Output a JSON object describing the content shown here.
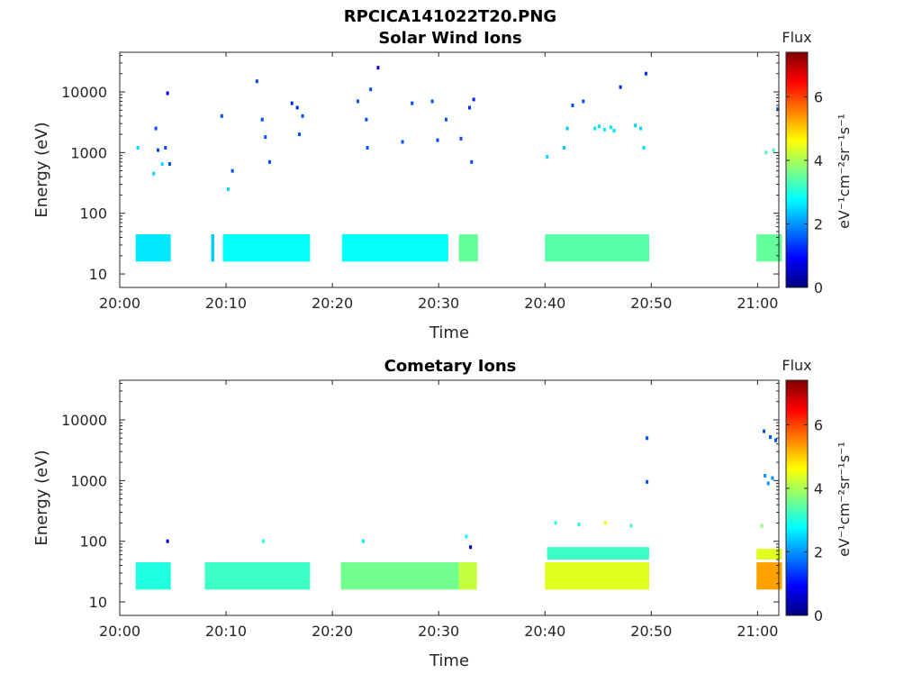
{
  "figure_title": "RPCICA141022T20.PNG",
  "colorbar": {
    "title": "Flux",
    "unit_label": "eV⁻¹cm⁻²sr⁻¹s⁻¹",
    "ticks": [
      "0",
      "2",
      "4",
      "6"
    ],
    "range": [
      0,
      7.4
    ],
    "colormap": "jet"
  },
  "chart_data": [
    {
      "type": "heatmap",
      "title": "Solar Wind Ions",
      "xlabel": "Time",
      "ylabel": "Energy (eV)",
      "x_ticks": [
        "20:00",
        "20:10",
        "20:20",
        "20:30",
        "20:40",
        "20:50",
        "21:00"
      ],
      "y_ticks": [
        "10",
        "100",
        "1000",
        "10000"
      ],
      "y_scale": "log",
      "xlim": [
        "20:00",
        "21:02"
      ],
      "ylim": [
        6,
        45000
      ],
      "cells": [
        {
          "t": 1.7,
          "e": 1200,
          "v": 2.5
        },
        {
          "t": 3.2,
          "e": 450,
          "v": 2.5
        },
        {
          "t": 3.4,
          "e": 2500,
          "v": 1.5
        },
        {
          "t": 3.6,
          "e": 1100,
          "v": 1.5
        },
        {
          "t": 4.3,
          "e": 1200,
          "v": 1.5
        },
        {
          "t": 4.5,
          "e": 9500,
          "v": 0.8
        },
        {
          "t": 4.7,
          "e": 650,
          "v": 1.5
        },
        {
          "t": 4.0,
          "e": 650,
          "v": 2.5
        },
        {
          "t": 9.6,
          "e": 4000,
          "v": 1.5
        },
        {
          "t": 10.6,
          "e": 500,
          "v": 1.5
        },
        {
          "t": 10.2,
          "e": 250,
          "v": 2.5
        },
        {
          "t": 12.9,
          "e": 15000,
          "v": 1.5
        },
        {
          "t": 13.4,
          "e": 3500,
          "v": 1.5
        },
        {
          "t": 13.7,
          "e": 1800,
          "v": 1.5
        },
        {
          "t": 14.1,
          "e": 700,
          "v": 1.5
        },
        {
          "t": 16.2,
          "e": 6500,
          "v": 1.2
        },
        {
          "t": 16.7,
          "e": 5500,
          "v": 1.2
        },
        {
          "t": 17.2,
          "e": 4000,
          "v": 1.5
        },
        {
          "t": 16.9,
          "e": 2000,
          "v": 1.5
        },
        {
          "t": 22.4,
          "e": 7000,
          "v": 1.5
        },
        {
          "t": 23.2,
          "e": 3500,
          "v": 1.5
        },
        {
          "t": 24.3,
          "e": 25000,
          "v": 0.6
        },
        {
          "t": 23.6,
          "e": 11000,
          "v": 1.5
        },
        {
          "t": 23.3,
          "e": 1200,
          "v": 1.5
        },
        {
          "t": 26.6,
          "e": 1500,
          "v": 1.5
        },
        {
          "t": 27.5,
          "e": 6500,
          "v": 1.5
        },
        {
          "t": 29.4,
          "e": 7000,
          "v": 1.5
        },
        {
          "t": 29.9,
          "e": 1600,
          "v": 1.5
        },
        {
          "t": 30.7,
          "e": 3500,
          "v": 1.5
        },
        {
          "t": 32.1,
          "e": 1700,
          "v": 1.5
        },
        {
          "t": 32.9,
          "e": 5500,
          "v": 1.2
        },
        {
          "t": 33.3,
          "e": 7500,
          "v": 1.2
        },
        {
          "t": 33.1,
          "e": 700,
          "v": 1.5
        },
        {
          "t": 40.2,
          "e": 850,
          "v": 2.5
        },
        {
          "t": 42.6,
          "e": 6000,
          "v": 1.5
        },
        {
          "t": 43.6,
          "e": 7000,
          "v": 1.5
        },
        {
          "t": 44.7,
          "e": 2500,
          "v": 2.6
        },
        {
          "t": 45.1,
          "e": 2700,
          "v": 2.6
        },
        {
          "t": 45.6,
          "e": 2400,
          "v": 2.6
        },
        {
          "t": 46.2,
          "e": 2600,
          "v": 2.6
        },
        {
          "t": 46.5,
          "e": 2300,
          "v": 2.6
        },
        {
          "t": 47.1,
          "e": 12000,
          "v": 1.2
        },
        {
          "t": 49.5,
          "e": 20000,
          "v": 1.2
        },
        {
          "t": 42.1,
          "e": 2500,
          "v": 2.4
        },
        {
          "t": 41.8,
          "e": 1200,
          "v": 2.4
        },
        {
          "t": 48.5,
          "e": 2800,
          "v": 2.5
        },
        {
          "t": 49.0,
          "e": 2500,
          "v": 2.5
        },
        {
          "t": 49.3,
          "e": 1200,
          "v": 2.5
        },
        {
          "t": 60.8,
          "e": 1000,
          "v": 3.3
        },
        {
          "t": 61.5,
          "e": 1100,
          "v": 3.3
        },
        {
          "t": 61.9,
          "e": 5200,
          "v": 1.5
        }
      ],
      "bands": [
        {
          "t0": 1.5,
          "t1": 4.8,
          "e0": 16,
          "e1": 45,
          "v": 2.6
        },
        {
          "t0": 8.6,
          "t1": 8.9,
          "e0": 16,
          "e1": 45,
          "v": 2.4
        },
        {
          "t0": 9.7,
          "t1": 17.9,
          "e0": 16,
          "e1": 45,
          "v": 2.8
        },
        {
          "t0": 20.9,
          "t1": 30.9,
          "e0": 16,
          "e1": 45,
          "v": 2.8
        },
        {
          "t0": 31.9,
          "t1": 33.7,
          "e0": 16,
          "e1": 45,
          "v": 3.5
        },
        {
          "t0": 40.0,
          "t1": 49.8,
          "e0": 16,
          "e1": 45,
          "v": 3.4
        },
        {
          "t0": 59.9,
          "t1": 62.3,
          "e0": 16,
          "e1": 45,
          "v": 3.5
        }
      ]
    },
    {
      "type": "heatmap",
      "title": "Cometary Ions",
      "xlabel": "Time",
      "ylabel": "Energy (eV)",
      "x_ticks": [
        "20:00",
        "20:10",
        "20:20",
        "20:30",
        "20:40",
        "20:50",
        "21:00"
      ],
      "y_ticks": [
        "10",
        "100",
        "1000",
        "10000"
      ],
      "y_scale": "log",
      "xlim": [
        "20:00",
        "21:02"
      ],
      "ylim": [
        6,
        45000
      ],
      "cells": [
        {
          "t": 4.5,
          "e": 100,
          "v": 0.6
        },
        {
          "t": 13.5,
          "e": 100,
          "v": 3.0
        },
        {
          "t": 22.9,
          "e": 100,
          "v": 2.6
        },
        {
          "t": 49.6,
          "e": 5000,
          "v": 1.5
        },
        {
          "t": 49.6,
          "e": 950,
          "v": 1.5
        },
        {
          "t": 60.6,
          "e": 6500,
          "v": 1.5
        },
        {
          "t": 61.2,
          "e": 5200,
          "v": 1.5
        },
        {
          "t": 61.7,
          "e": 4600,
          "v": 1.5
        },
        {
          "t": 60.7,
          "e": 1200,
          "v": 2.0
        },
        {
          "t": 61.0,
          "e": 900,
          "v": 2.0
        },
        {
          "t": 61.4,
          "e": 1100,
          "v": 2.0
        },
        {
          "t": 33.0,
          "e": 80,
          "v": 0.6
        },
        {
          "t": 32.6,
          "e": 120,
          "v": 2.8
        },
        {
          "t": 41.0,
          "e": 200,
          "v": 3.0
        },
        {
          "t": 43.2,
          "e": 190,
          "v": 3.0
        },
        {
          "t": 45.7,
          "e": 200,
          "v": 4.5
        },
        {
          "t": 48.1,
          "e": 180,
          "v": 3.3
        },
        {
          "t": 60.4,
          "e": 180,
          "v": 3.8
        }
      ],
      "bands": [
        {
          "t0": 1.5,
          "t1": 4.8,
          "e0": 16,
          "e1": 45,
          "v": 3.0
        },
        {
          "t0": 8.0,
          "t1": 17.9,
          "e0": 16,
          "e1": 45,
          "v": 3.2
        },
        {
          "t0": 20.8,
          "t1": 31.9,
          "e0": 16,
          "e1": 45,
          "v": 3.6
        },
        {
          "t0": 31.9,
          "t1": 33.6,
          "e0": 16,
          "e1": 45,
          "v": 4.2
        },
        {
          "t0": 40.0,
          "t1": 49.8,
          "e0": 16,
          "e1": 45,
          "v": 4.4
        },
        {
          "t0": 40.2,
          "t1": 49.8,
          "e0": 50,
          "e1": 80,
          "v": 3.2
        },
        {
          "t0": 59.9,
          "t1": 62.3,
          "e0": 16,
          "e1": 45,
          "v": 5.3
        },
        {
          "t0": 59.9,
          "t1": 62.3,
          "e0": 50,
          "e1": 75,
          "v": 4.4
        }
      ]
    }
  ]
}
